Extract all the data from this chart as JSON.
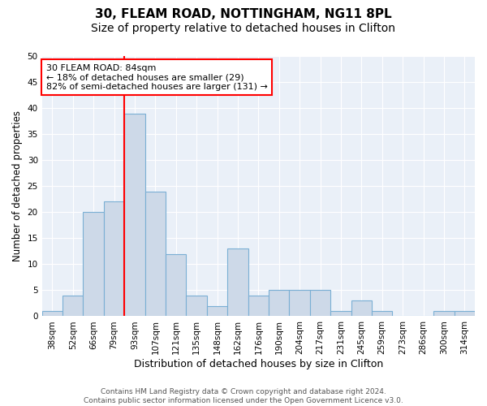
{
  "title1": "30, FLEAM ROAD, NOTTINGHAM, NG11 8PL",
  "title2": "Size of property relative to detached houses in Clifton",
  "xlabel": "Distribution of detached houses by size in Clifton",
  "ylabel": "Number of detached properties",
  "categories": [
    "38sqm",
    "52sqm",
    "66sqm",
    "79sqm",
    "93sqm",
    "107sqm",
    "121sqm",
    "135sqm",
    "148sqm",
    "162sqm",
    "176sqm",
    "190sqm",
    "204sqm",
    "217sqm",
    "231sqm",
    "245sqm",
    "259sqm",
    "273sqm",
    "286sqm",
    "300sqm",
    "314sqm"
  ],
  "values": [
    1,
    4,
    20,
    22,
    39,
    24,
    12,
    4,
    2,
    13,
    4,
    5,
    5,
    5,
    1,
    3,
    1,
    0,
    0,
    1,
    1
  ],
  "bar_color": "#cdd9e8",
  "bar_edge_color": "#7aafd4",
  "vline_color": "red",
  "vline_x": 3.5,
  "annotation_box_text": "30 FLEAM ROAD: 84sqm\n← 18% of detached houses are smaller (29)\n82% of semi-detached houses are larger (131) →",
  "annotation_box_color": "white",
  "annotation_box_edge_color": "red",
  "ylim": [
    0,
    50
  ],
  "yticks": [
    0,
    5,
    10,
    15,
    20,
    25,
    30,
    35,
    40,
    45,
    50
  ],
  "bg_color": "#eaf0f8",
  "footer_text": "Contains HM Land Registry data © Crown copyright and database right 2024.\nContains public sector information licensed under the Open Government Licence v3.0.",
  "title1_fontsize": 11,
  "title2_fontsize": 10,
  "xlabel_fontsize": 9,
  "ylabel_fontsize": 8.5,
  "tick_fontsize": 7.5,
  "annotation_fontsize": 8,
  "footer_fontsize": 6.5
}
